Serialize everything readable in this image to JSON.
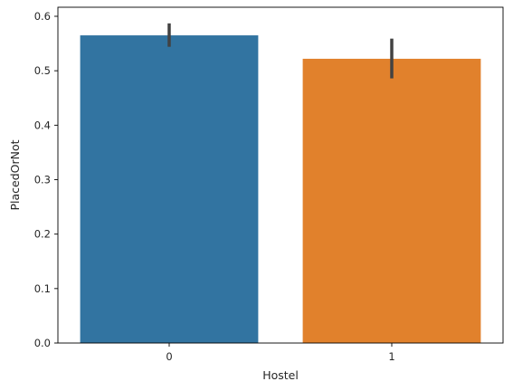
{
  "chart_data": {
    "type": "bar",
    "categories": [
      "0",
      "1"
    ],
    "values": [
      0.565,
      0.522
    ],
    "error_bars": [
      {
        "low": 0.544,
        "high": 0.587
      },
      {
        "low": 0.486,
        "high": 0.559
      }
    ],
    "colors": [
      "#3274a1",
      "#e1812c"
    ],
    "error_color": "#424242",
    "xlabel": "Hostel",
    "ylabel": "PlacedOrNot",
    "ylim": [
      0,
      0.6
    ],
    "yticks": [
      0.0,
      0.1,
      0.2,
      0.3,
      0.4,
      0.5,
      0.6
    ],
    "ytick_labels": [
      "0.0",
      "0.1",
      "0.2",
      "0.3",
      "0.4",
      "0.5",
      "0.6"
    ],
    "grid": false,
    "legend": "none"
  }
}
